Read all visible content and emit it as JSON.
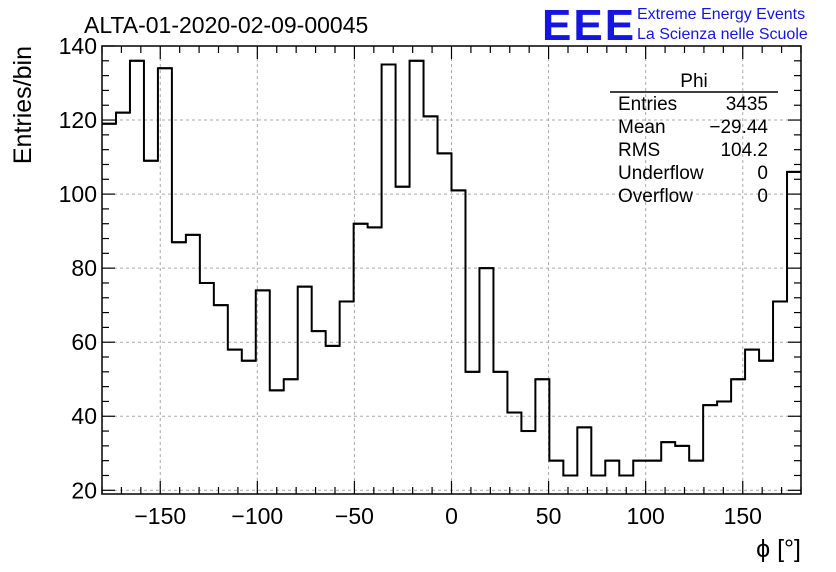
{
  "chart_data": {
    "type": "histogram",
    "title": "ALTA-01-2020-02-09-00045",
    "xlabel": "ϕ [°]",
    "ylabel": "Entries/bin",
    "xlim": [
      -180,
      180
    ],
    "ylim": [
      19,
      140
    ],
    "xticks": [
      -150,
      -100,
      -50,
      0,
      50,
      100,
      150
    ],
    "yticks": [
      20,
      40,
      60,
      80,
      100,
      120,
      140
    ],
    "grid": true,
    "bin_width": 7.2,
    "bin_edges_start": -180,
    "values": [
      119,
      122,
      136,
      109,
      134,
      87,
      89,
      76,
      70,
      58,
      55,
      74,
      47,
      50,
      75,
      63,
      59,
      71,
      92,
      91,
      135,
      102,
      136,
      121,
      111,
      101,
      52,
      80,
      52,
      41,
      36,
      50,
      28,
      24,
      37,
      24,
      28,
      24,
      28,
      28,
      33,
      32,
      28,
      43,
      44,
      50,
      58,
      55,
      71,
      106
    ],
    "stats_box": {
      "title": "Phi",
      "rows": [
        {
          "label": "Entries",
          "value": "3435"
        },
        {
          "label": "Mean",
          "value": "−29.44"
        },
        {
          "label": "RMS",
          "value": "104.2"
        },
        {
          "label": "Underflow",
          "value": "0"
        },
        {
          "label": "Overflow",
          "value": "0"
        }
      ]
    }
  },
  "logo": {
    "mark": "EEE",
    "line1": "Extreme Energy Events",
    "line2": "La Scienza nelle Scuole",
    "color": "#1515e0"
  }
}
